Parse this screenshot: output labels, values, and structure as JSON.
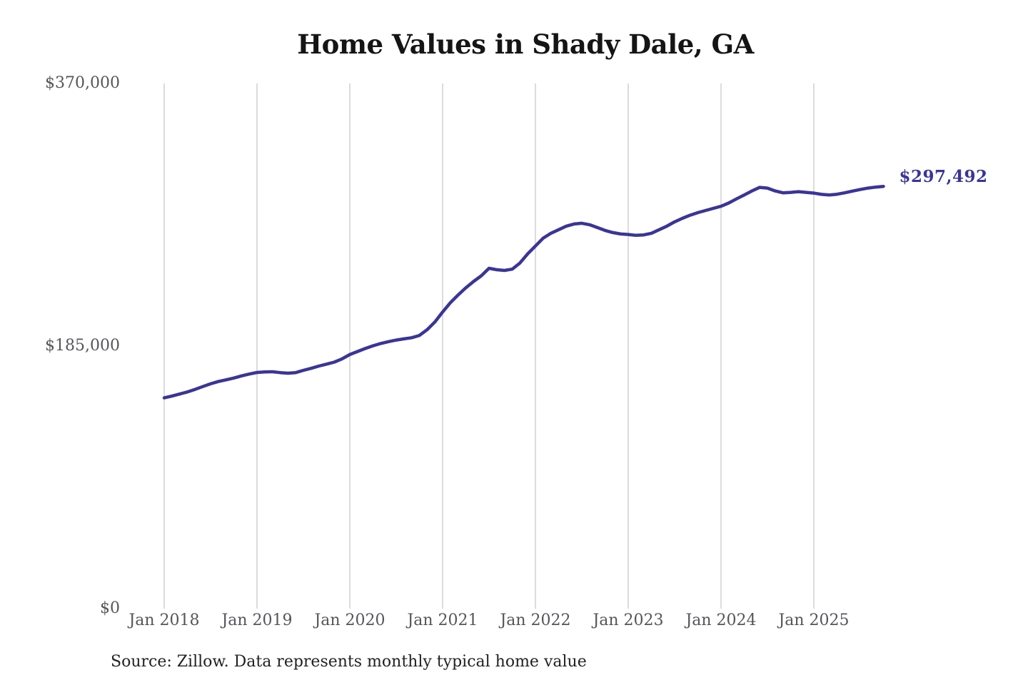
{
  "chart_data": {
    "type": "line",
    "title": "Home Values in Shady Dale, GA",
    "source_note": "Source: Zillow. Data represents monthly typical home value",
    "latest_value_label": "$297,492",
    "latest_value": 297492,
    "frequency": "monthly",
    "x_start_month": "Jan 2018",
    "x_end_month": "Oct 2025",
    "ylim": [
      0,
      370000
    ],
    "grid": "vertical-only",
    "legend": "none",
    "y_ticks": [
      {
        "label": "$370,000",
        "value": 370000
      },
      {
        "label": "$185,000",
        "value": 185000
      },
      {
        "label": "$0",
        "value": 0
      }
    ],
    "x_ticks": [
      {
        "label": "Jan 2018",
        "month_index": 0
      },
      {
        "label": "Jan 2019",
        "month_index": 12
      },
      {
        "label": "Jan 2020",
        "month_index": 24
      },
      {
        "label": "Jan 2021",
        "month_index": 36
      },
      {
        "label": "Jan 2022",
        "month_index": 48
      },
      {
        "label": "Jan 2023",
        "month_index": 60
      },
      {
        "label": "Jan 2024",
        "month_index": 72
      },
      {
        "label": "Jan 2025",
        "month_index": 84
      }
    ],
    "series": [
      {
        "name": "Monthly typical home value",
        "color": "#3a3596",
        "values": [
          148500,
          149800,
          151200,
          152700,
          154500,
          156500,
          158400,
          160000,
          161200,
          162500,
          164000,
          165300,
          166400,
          166800,
          166900,
          166300,
          165900,
          166300,
          167900,
          169300,
          170900,
          172300,
          173700,
          176000,
          179000,
          181200,
          183300,
          185200,
          186800,
          188100,
          189200,
          190100,
          190900,
          192500,
          196500,
          202000,
          209000,
          215500,
          221000,
          226000,
          230500,
          234500,
          239800,
          238800,
          238300,
          239200,
          243500,
          250000,
          255500,
          261000,
          264500,
          267000,
          269500,
          271000,
          271500,
          270500,
          268500,
          266500,
          265000,
          264000,
          263600,
          263000,
          263300,
          264500,
          267000,
          269500,
          272500,
          275000,
          277200,
          279000,
          280500,
          282000,
          283500,
          285800,
          288700,
          291500,
          294300,
          296800,
          296300,
          294300,
          293000,
          293300,
          293800,
          293300,
          292800,
          291900,
          291500,
          292000,
          293000,
          294200,
          295300,
          296300,
          297000,
          297492
        ]
      }
    ],
    "colors": {
      "accent": "#3a3596",
      "grid": "#c9c9c9",
      "axis_text": "#55565a",
      "title_text": "#151515",
      "source_text": "#222222",
      "background": "#ffffff"
    }
  }
}
